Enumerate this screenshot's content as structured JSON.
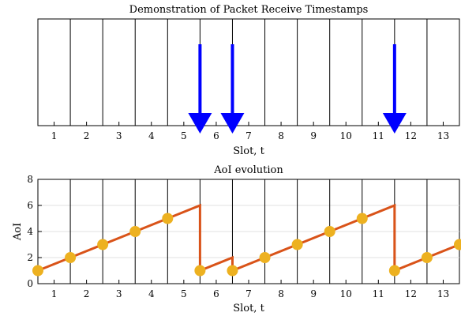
{
  "chart_data": [
    {
      "type": "timeline",
      "title": "Demonstration of Packet Receive Timestamps",
      "xlabel": "Slot, t",
      "x_ticks": [
        1,
        2,
        3,
        4,
        5,
        6,
        7,
        8,
        9,
        10,
        11,
        12,
        13
      ],
      "xlim": [
        0.5,
        13.5
      ],
      "slot_boundaries": [
        1.5,
        2.5,
        3.5,
        4.5,
        5.5,
        6.5,
        7.5,
        8.5,
        9.5,
        10.5,
        11.5,
        12.5
      ],
      "receive_timestamps": [
        5.5,
        6.5,
        11.5
      ],
      "arrow_color": "#0000ff"
    },
    {
      "type": "line",
      "title": "AoI evolution",
      "xlabel": "Slot, t",
      "ylabel": "AoI",
      "xlim": [
        0.5,
        13.5
      ],
      "ylim": [
        0,
        8
      ],
      "x_ticks": [
        1,
        2,
        3,
        4,
        5,
        6,
        7,
        8,
        9,
        10,
        11,
        12,
        13
      ],
      "y_ticks": [
        0,
        2,
        4,
        6,
        8
      ],
      "grid": "y",
      "slot_boundaries": [
        1.5,
        2.5,
        3.5,
        4.5,
        5.5,
        6.5,
        7.5,
        8.5,
        9.5,
        10.5,
        11.5,
        12.5
      ],
      "line": {
        "x": [
          0.5,
          1.5,
          2.5,
          3.5,
          4.5,
          5.5,
          5.5,
          6.5,
          6.5,
          7.5,
          8.5,
          9.5,
          10.5,
          11.5,
          11.5,
          12.5,
          13.5
        ],
        "y": [
          1,
          2,
          3,
          4,
          5,
          6,
          1,
          2,
          1,
          2,
          3,
          4,
          5,
          6,
          1,
          2,
          3
        ],
        "color": "#d95319"
      },
      "markers": {
        "x": [
          0.5,
          1.5,
          2.5,
          3.5,
          4.5,
          5.5,
          6.5,
          7.5,
          8.5,
          9.5,
          10.5,
          11.5,
          12.5,
          13.5
        ],
        "y": [
          1,
          2,
          3,
          4,
          5,
          1,
          1,
          2,
          3,
          4,
          5,
          1,
          2,
          3
        ],
        "color": "#edb120"
      }
    }
  ]
}
